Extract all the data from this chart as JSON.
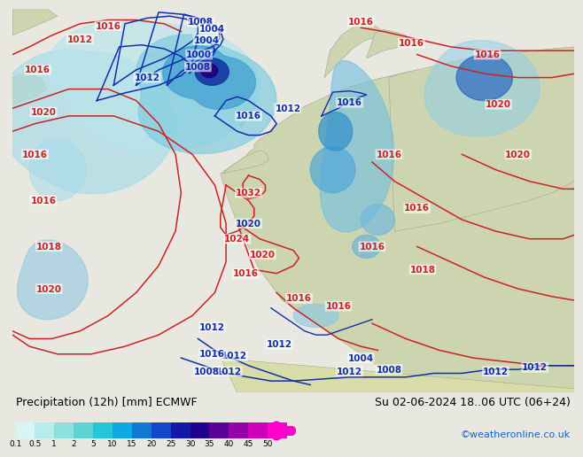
{
  "title_left": "Precipitation (12h) [mm] ECMWF",
  "title_right": "Su 02-06-2024 18..06 UTC (06+24)",
  "watermark": "©weatheronline.co.uk",
  "colorbar_labels": [
    "0.1",
    "0.5",
    "1",
    "2",
    "5",
    "10",
    "15",
    "20",
    "25",
    "30",
    "35",
    "40",
    "45",
    "50"
  ],
  "colorbar_colors": [
    "#d8f4f4",
    "#b8ecec",
    "#8ee0e0",
    "#5cd4d4",
    "#28c4d8",
    "#10a8e4",
    "#1078d4",
    "#1048c8",
    "#1018a4",
    "#200090",
    "#5a0098",
    "#9800aa",
    "#cc00bc",
    "#ff00cc"
  ],
  "bottom_bg": "#e8e8e0",
  "map_bg_ocean": "#c8dce8",
  "map_bg_land_europe": "#d0d8b8",
  "map_bg_land_africa": "#d8dca8",
  "isobar_red": "#cc2222",
  "isobar_blue": "#1030aa"
}
